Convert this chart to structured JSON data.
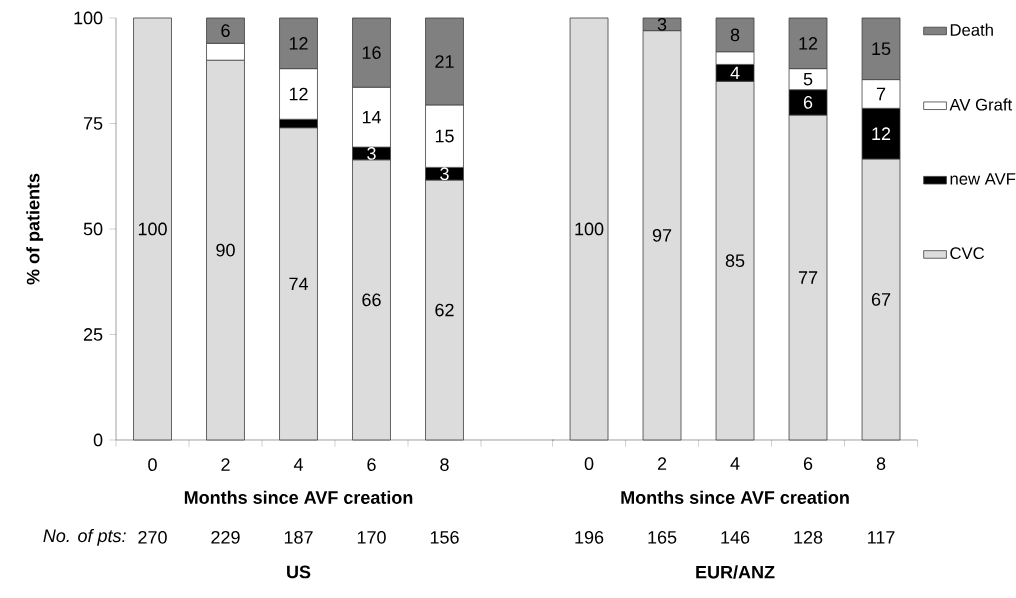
{
  "chart_data": [
    {
      "type": "bar",
      "title": "US",
      "xlabel": "Months since AVF creation",
      "ylabel": "% of patients",
      "stacked": true,
      "legend": false,
      "categories": [
        "0",
        "2",
        "4",
        "6",
        "8"
      ],
      "ylim": [
        0,
        100
      ],
      "yticks": [
        0,
        25,
        50,
        75,
        100
      ],
      "series": [
        {
          "color": "#dcdcdc",
          "values": [
            100,
            90,
            74,
            66.4,
            61.6
          ],
          "value_labels": [
            "100",
            "90",
            "74",
            "66",
            "62"
          ]
        },
        {
          "color": "#000000",
          "values": [
            null,
            null,
            2,
            3,
            3
          ],
          "value_labels": [
            null,
            null,
            null,
            "3",
            "3"
          ]
        },
        {
          "color": "#ffffff",
          "values": [
            null,
            4,
            12,
            14.2,
            14.8
          ],
          "value_labels": [
            null,
            null,
            "12",
            "14",
            "15"
          ]
        },
        {
          "color": "#808080",
          "values": [
            null,
            6,
            12,
            16.4,
            20.6
          ],
          "value_labels": [
            null,
            "6",
            "12",
            "16",
            "21"
          ]
        }
      ],
      "annotations": [
        "No. of pts:",
        "270",
        "229",
        "187",
        "170",
        "156"
      ]
    },
    {
      "type": "bar",
      "title": "EUR/ANZ",
      "xlabel": "Months since AVF creation",
      "stacked": true,
      "legend": "right",
      "tick_labels": "x",
      "categories": [
        "0",
        "2",
        "4",
        "6",
        "8"
      ],
      "ylim": [
        0,
        100
      ],
      "series": [
        {
          "name": "CVC",
          "color": "#dcdcdc",
          "values": [
            100,
            97,
            85,
            77,
            66.6
          ],
          "value_labels": [
            "100",
            "97",
            "85",
            "77",
            "67"
          ]
        },
        {
          "name": "new AVF",
          "color": "#000000",
          "values": [
            null,
            null,
            4,
            6,
            12
          ],
          "value_labels": [
            null,
            null,
            "4",
            "6",
            "12"
          ]
        },
        {
          "name": "AV Graft",
          "color": "#ffffff",
          "values": [
            null,
            null,
            3,
            5,
            6.8
          ],
          "value_labels": [
            null,
            null,
            null,
            "5",
            "7"
          ]
        },
        {
          "name": "Death",
          "color": "#808080",
          "values": [
            null,
            3,
            8,
            12,
            14.6
          ],
          "value_labels": [
            null,
            "3",
            "8",
            "12",
            "15"
          ]
        }
      ],
      "annotations": [
        "196",
        "165",
        "146",
        "128",
        "117"
      ]
    }
  ]
}
